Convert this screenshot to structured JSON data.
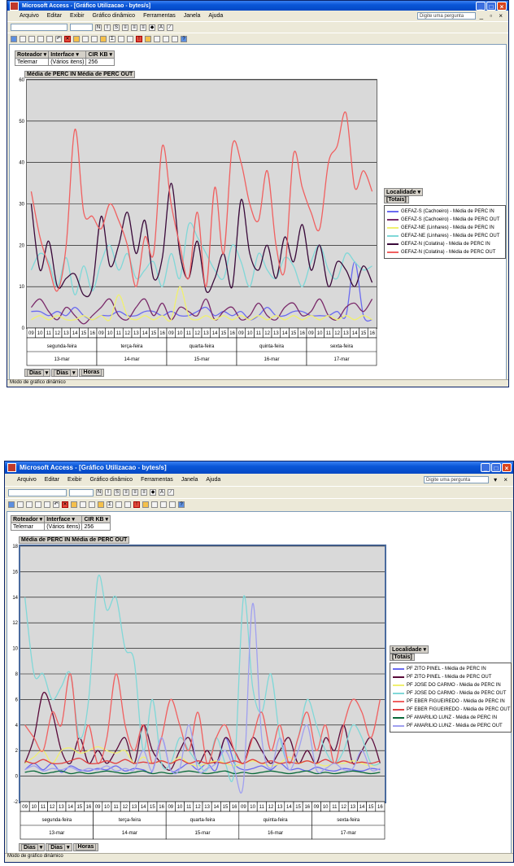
{
  "colors": {
    "title_blue": "#0a56d8",
    "plot_bg": "#d9d9d9"
  },
  "menu": [
    "Arquivo",
    "Editar",
    "Exibir",
    "Gráfico dinâmico",
    "Ferramentas",
    "Janela",
    "Ajuda"
  ],
  "ask_placeholder": "Digite uma pergunta",
  "filters": {
    "h1": "Roteador",
    "h2": "Interface",
    "h3": "CIR KB",
    "v1": "Telemar",
    "v2": "(Vários itens)",
    "v3": "256"
  },
  "data_fields": "Média de PERC IN  Média de PERC OUT",
  "legend_title": "Localidade",
  "legend_sub": "[Totais]",
  "bottom_fields": [
    "Dias",
    "Dias",
    "Horas"
  ],
  "hours": [
    "09",
    "10",
    "11",
    "12",
    "13",
    "14",
    "15",
    "16"
  ],
  "days": [
    {
      "weekday": "segunda-feira",
      "date": "13-mar"
    },
    {
      "weekday": "terça-feira",
      "date": "14-mar"
    },
    {
      "weekday": "quarta-feira",
      "date": "15-mar"
    },
    {
      "weekday": "quinta-feira",
      "date": "16-mar"
    },
    {
      "weekday": "sexta-feira",
      "date": "17-mar"
    }
  ],
  "status": "Modo de gráfico dinâmico",
  "windows": [
    {
      "title": "Microsoft Access - [Gráfico Utilizacao - bytes/s]",
      "chart_data": {
        "type": "line",
        "ylim": [
          0,
          60
        ],
        "yticks": [
          0,
          10,
          20,
          30,
          40,
          50,
          60
        ],
        "series": [
          {
            "name": "GEFAZ-S (Cachoeiro) - Média de PERC IN",
            "color": "#6a6af0",
            "values": [
              4,
              4,
              3,
              4,
              3,
              5,
              3,
              2,
              3,
              3,
              4,
              3,
              3,
              4,
              4,
              3,
              4,
              3,
              3,
              4,
              5,
              3,
              4,
              3,
              4,
              2,
              3,
              5,
              3,
              3,
              4,
              4,
              3,
              3,
              3,
              4,
              3,
              16,
              3,
              2
            ]
          },
          {
            "name": "GEFAZ-S (Cachoeiro) - Média de PERC OUT",
            "color": "#7a2a6a",
            "values": [
              5,
              7,
              4,
              2,
              5,
              3,
              1,
              3,
              5,
              7,
              3,
              2,
              5,
              7,
              3,
              6,
              2,
              5,
              4,
              3,
              7,
              2,
              4,
              5,
              2,
              3,
              6,
              3,
              2,
              5,
              6,
              3,
              4,
              7,
              3,
              2,
              5,
              6,
              4,
              7
            ]
          },
          {
            "name": "GEFAZ-NE (Linhares) - Média de PERC IN",
            "color": "#f0f070",
            "values": [
              2,
              3,
              2,
              3,
              2,
              2,
              3,
              2,
              3,
              2,
              8,
              3,
              2,
              3,
              2,
              3,
              2,
              10,
              3,
              2,
              3,
              2,
              3,
              2,
              3,
              2,
              3,
              2,
              3,
              2,
              3,
              2,
              3,
              2,
              3,
              2,
              3,
              2,
              3,
              2
            ]
          },
          {
            "name": "GEFAZ-NE (Linhares) - Média de PERC OUT",
            "color": "#80d8d8",
            "values": [
              14,
              18,
              16,
              10,
              17,
              8,
              15,
              9,
              16,
              20,
              14,
              18,
              12,
              14,
              16,
              10,
              18,
              12,
              25,
              22,
              18,
              14,
              12,
              20,
              16,
              10,
              18,
              14,
              12,
              17,
              15,
              10,
              16,
              20,
              14,
              12,
              18,
              16,
              14,
              15
            ]
          },
          {
            "name": "GEFAZ-N (Colatina) - Média de PERC IN",
            "color": "#3a0a3a",
            "values": [
              30,
              14,
              21,
              10,
              12,
              13,
              8,
              10,
              27,
              15,
              20,
              28,
              18,
              26,
              12,
              17,
              35,
              18,
              12,
              21,
              9,
              12,
              18,
              10,
              31,
              18,
              14,
              20,
              12,
              22,
              16,
              25,
              14,
              20,
              10,
              16,
              14,
              10,
              15,
              11
            ]
          },
          {
            "name": "GEFAZ-N (Colatina) - Média de PERC OUT",
            "color": "#f06060",
            "values": [
              33,
              22,
              15,
              9,
              20,
              48,
              28,
              27,
              24,
              30,
              26,
              20,
              10,
              22,
              18,
              44,
              30,
              20,
              12,
              28,
              10,
              34,
              18,
              44,
              40,
              30,
              26,
              38,
              20,
              14,
              42,
              34,
              28,
              24,
              40,
              44,
              52,
              34,
              38,
              33
            ]
          }
        ]
      }
    },
    {
      "title": "Microsoft Access - [Gráfico Utilizacao - bytes/s]",
      "chart_data": {
        "type": "line",
        "ylim": [
          -2,
          18
        ],
        "yticks": [
          -2,
          0,
          2,
          4,
          6,
          8,
          10,
          12,
          14,
          16,
          18
        ],
        "series": [
          {
            "name": "PF ZITO PINEL - Média de PERC IN",
            "color": "#6a6af0",
            "values": [
              0.5,
              1,
              0.5,
              1,
              0.3,
              0.8,
              0.5,
              0.4,
              0.6,
              0.5,
              0.8,
              0.4,
              0.6,
              0.5,
              0.4,
              3,
              0.5,
              0.6,
              1,
              0.5,
              1,
              0.5,
              3,
              1,
              0.5,
              0.6,
              0.8,
              0.5,
              1,
              0.5,
              0.6,
              0.4,
              0.7,
              0.5,
              0.4,
              0.6,
              0.5,
              0.4,
              0.6,
              0.5
            ]
          },
          {
            "name": "PF ZITO PINEL - Média de PERC OUT",
            "color": "#5a0a3a",
            "values": [
              1,
              3,
              6.5,
              5,
              2,
              1,
              3,
              1,
              2,
              1,
              2,
              3,
              1,
              4,
              2,
              1,
              0.5,
              2,
              3,
              1,
              2,
              1,
              3,
              2,
              1,
              3,
              2,
              1,
              2,
              3,
              1,
              2,
              1,
              3,
              2,
              4,
              1,
              2,
              3,
              1
            ]
          },
          {
            "name": "PF JOSE DO CARMO - Média de PERC IN",
            "color": "#f0f070",
            "values": [
              1,
              1.5,
              2,
              1,
              2,
              2.2,
              1.8,
              2,
              2.3,
              2,
              1.8,
              2,
              1,
              1.5,
              1,
              1.2,
              1,
              1.5,
              1,
              0.8,
              1,
              1.2,
              1,
              0.8,
              1,
              1.2,
              1,
              0.8,
              1,
              1.5,
              1,
              1.2,
              1,
              0.8,
              1,
              1,
              1.2,
              1,
              0.8,
              1
            ]
          },
          {
            "name": "PF JOSE DO CARMO - Média de PERC OUT",
            "color": "#80d8d8",
            "values": [
              14,
              8,
              8,
              6,
              7,
              8,
              3,
              6,
              15.5,
              13,
              14,
              10,
              9,
              2,
              6,
              1,
              1,
              3,
              2,
              1,
              0.5,
              3,
              1,
              0.5,
              14,
              7,
              5,
              8,
              3,
              1,
              3,
              6,
              4,
              2,
              1,
              2,
              4,
              3,
              1,
              1
            ]
          },
          {
            "name": "PF EBER FIGUEIREDO - Média de PERC IN",
            "color": "#f06060",
            "values": [
              4,
              3,
              2,
              5,
              4,
              8,
              2,
              4,
              1,
              3,
              8,
              4,
              2,
              4,
              1,
              3,
              6,
              4,
              2,
              5,
              1,
              3,
              4,
              2,
              1,
              3,
              5,
              2,
              4,
              1,
              3,
              5,
              2,
              4,
              1,
              4,
              6,
              5,
              3,
              6
            ]
          },
          {
            "name": "PF EBER FIGUEIREDO - Média de PERC OUT",
            "color": "#e04040",
            "values": [
              1.2,
              1,
              1.3,
              1,
              1,
              1.2,
              1.4,
              1,
              1,
              1.2,
              1,
              1.3,
              1,
              1.1,
              1,
              1.2,
              1,
              1.3,
              1,
              1.2,
              1,
              1.1,
              1,
              1.2,
              1,
              1.3,
              1,
              1.2,
              1,
              1.1,
              1,
              1.2,
              1,
              1.3,
              1,
              1.2,
              1,
              1.1,
              1,
              1.2
            ]
          },
          {
            "name": "PF AMARILIO LUNZ - Média de PERC IN",
            "color": "#0a6a3a",
            "values": [
              0.3,
              0.4,
              0.2,
              0.3,
              0.4,
              0.2,
              0.3,
              0.2,
              0.3,
              0.4,
              0.3,
              0.2,
              0.3,
              0.4,
              0.2,
              0.3,
              0.2,
              0.3,
              0.4,
              0.3,
              0.2,
              0.3,
              0.4,
              0.2,
              0.3,
              0.2,
              0.3,
              0.4,
              0.3,
              0.2,
              0.3,
              0.4,
              0.2,
              0.3,
              0.2,
              0.3,
              0.4,
              0.3,
              0.2,
              0.3
            ]
          },
          {
            "name": "PF AMARILIO LUNZ - Média de PERC OUT",
            "color": "#a0a0f0",
            "values": [
              0.5,
              0.8,
              0.4,
              0.6,
              0.5,
              0.7,
              0.4,
              0.6,
              0.5,
              0.8,
              0.4,
              0.6,
              0.5,
              2,
              0.4,
              3,
              0.5,
              0.6,
              4,
              0.5,
              0.6,
              1,
              2,
              0.5,
              -0.5,
              13.5,
              3,
              0.6,
              3,
              0.5,
              2,
              4,
              0.5,
              0.6,
              1,
              0.5,
              0.6,
              2,
              0.5,
              0.6
            ]
          }
        ]
      }
    }
  ]
}
